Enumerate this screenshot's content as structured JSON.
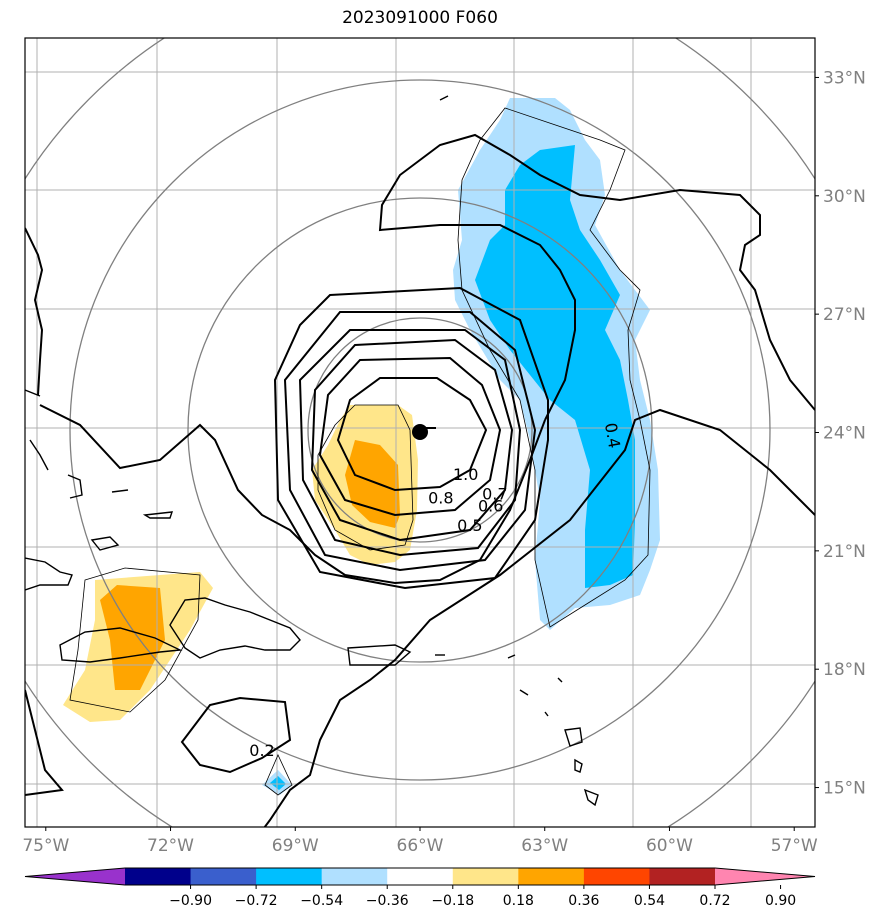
{
  "title": "2023091000 F060",
  "map": {
    "lon_range": [
      -75.5,
      -56.5
    ],
    "lat_range": [
      14.0,
      34.0
    ],
    "lon_ticks": [
      {
        "lon": -75,
        "label": "75°W"
      },
      {
        "lon": -72,
        "label": "72°W"
      },
      {
        "lon": -69,
        "label": "69°W"
      },
      {
        "lon": -66,
        "label": "66°W"
      },
      {
        "lon": -63,
        "label": "63°W"
      },
      {
        "lon": -60,
        "label": "60°W"
      },
      {
        "lon": -57,
        "label": "57°W"
      }
    ],
    "lat_ticks": [
      {
        "lat": 15,
        "label": "15°N"
      },
      {
        "lat": 18,
        "label": "18°N"
      },
      {
        "lat": 21,
        "label": "21°N"
      },
      {
        "lat": 24,
        "label": "24°N"
      },
      {
        "lat": 27,
        "label": "27°N"
      },
      {
        "lat": 30,
        "label": "30°N"
      },
      {
        "lat": 33,
        "label": "33°N"
      }
    ],
    "storm_center": {
      "lon": -65.5,
      "lat": 23.9
    },
    "contour_labels": [
      {
        "text": "1.0",
        "lon": -64.9,
        "lat": 22.8
      },
      {
        "text": "0.8",
        "lon": -65.5,
        "lat": 22.2
      },
      {
        "text": "0.7",
        "lon": -64.2,
        "lat": 22.3
      },
      {
        "text": "0.6",
        "lon": -64.3,
        "lat": 22.0
      },
      {
        "text": "0.5",
        "lon": -64.8,
        "lat": 21.5
      },
      {
        "text": "0.4",
        "lon": -61.5,
        "lat": 23.9
      },
      {
        "text": "0.2",
        "lon": -69.8,
        "lat": 15.8
      }
    ]
  },
  "colorbar": {
    "ticks": [
      "−0.90",
      "−0.72",
      "−0.54",
      "−0.36",
      "−0.18",
      "0.18",
      "0.36",
      "0.54",
      "0.72",
      "0.90"
    ],
    "colors": [
      "#9932cc",
      "#00008b",
      "#3a5fcd",
      "#00bfff",
      "#b0e0ff",
      "#ffffff",
      "#ffe68a",
      "#ffa500",
      "#ff4500",
      "#b22222",
      "#ff85b0"
    ]
  }
}
